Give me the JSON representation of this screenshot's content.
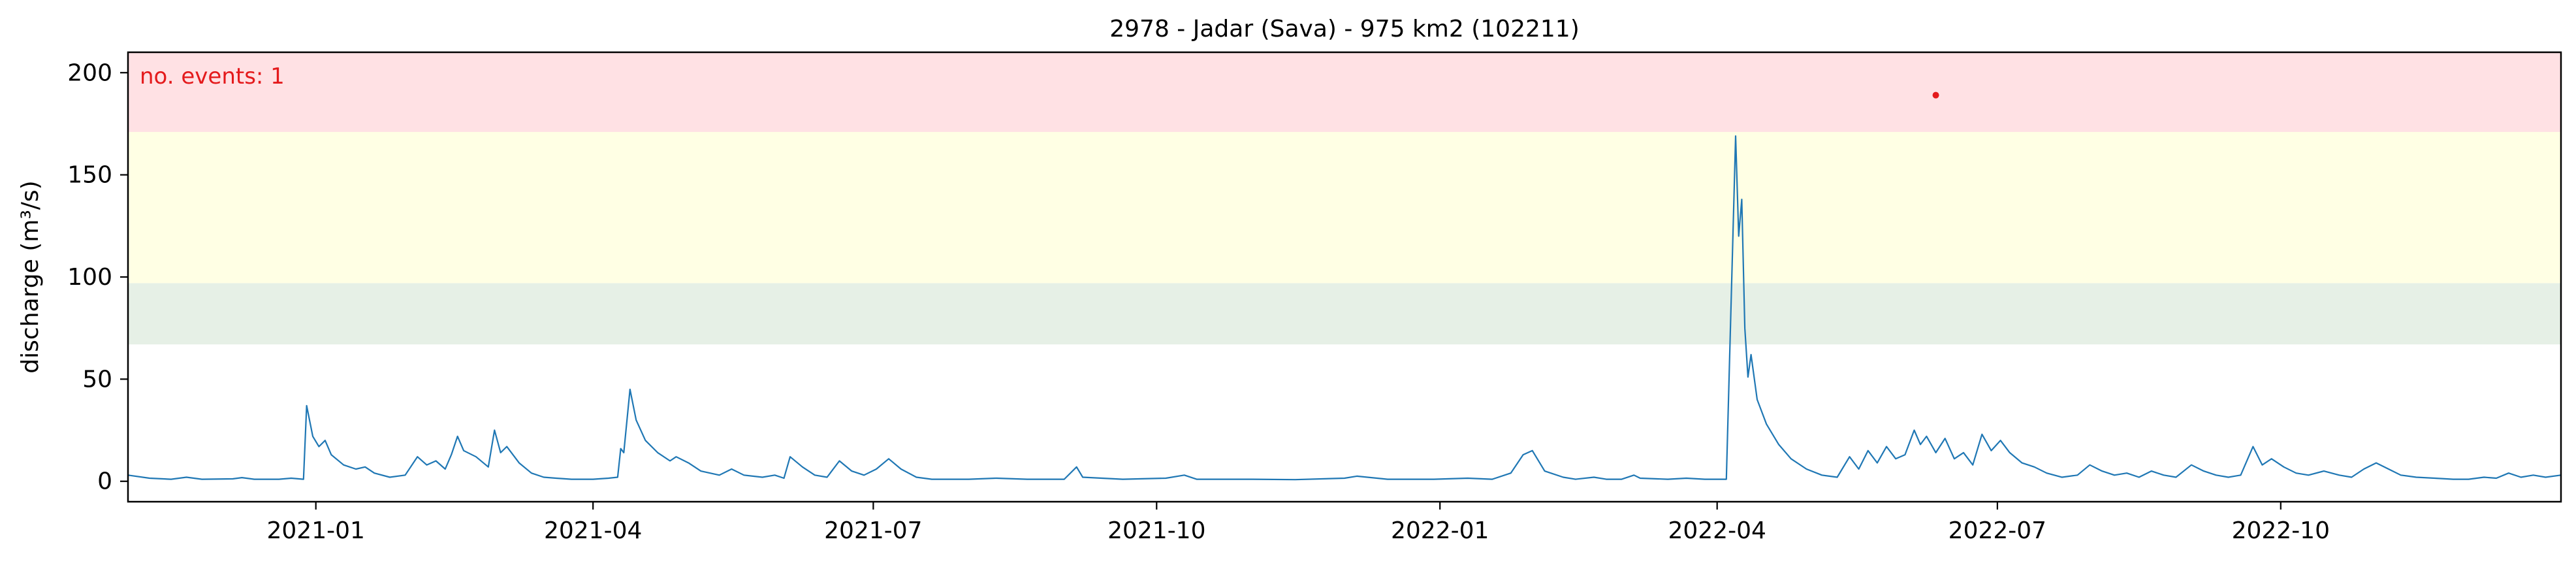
{
  "chart_data": {
    "type": "line",
    "title": "2978 - Jadar (Sava) - 975 km2 (102211)",
    "xlabel": "",
    "ylabel": "discharge (m³/s)",
    "xlim": [
      "2020-11-01",
      "2022-12-31"
    ],
    "ylim": [
      -10,
      210
    ],
    "x_ticks": [
      "2021-01",
      "2021-04",
      "2021-07",
      "2021-10",
      "2022-01",
      "2022-04",
      "2022-07",
      "2022-10"
    ],
    "y_ticks": [
      0,
      50,
      100,
      150,
      200
    ],
    "grid": false,
    "threshold_bands": [
      {
        "from": 67,
        "to": 97,
        "color": "#e6f0e6"
      },
      {
        "from": 97,
        "to": 171,
        "color": "#ffffe4"
      },
      {
        "from": 171,
        "to": 210,
        "color": "#ffe1e4"
      }
    ],
    "annotation": {
      "text": "no. events: 1",
      "color": "#e41a1c"
    },
    "events": [
      {
        "x": "2022-06-11",
        "y": 189,
        "color": "#e41a1c"
      }
    ],
    "series": [
      {
        "color": "#1f77b4",
        "points": [
          [
            "2020-11-01",
            3
          ],
          [
            "2020-11-08",
            1.5
          ],
          [
            "2020-11-15",
            1
          ],
          [
            "2020-11-20",
            2
          ],
          [
            "2020-11-25",
            1
          ],
          [
            "2020-12-05",
            1.2
          ],
          [
            "2020-12-08",
            1.8
          ],
          [
            "2020-12-12",
            1
          ],
          [
            "2020-12-20",
            1
          ],
          [
            "2020-12-24",
            1.5
          ],
          [
            "2020-12-28",
            1
          ],
          [
            "2020-12-29",
            37
          ],
          [
            "2020-12-31",
            22
          ],
          [
            "2021-01-02",
            17
          ],
          [
            "2021-01-04",
            20
          ],
          [
            "2021-01-06",
            13
          ],
          [
            "2021-01-10",
            8
          ],
          [
            "2021-01-14",
            6
          ],
          [
            "2021-01-17",
            7
          ],
          [
            "2021-01-20",
            4
          ],
          [
            "2021-01-25",
            2
          ],
          [
            "2021-01-30",
            3
          ],
          [
            "2021-02-03",
            12
          ],
          [
            "2021-02-06",
            8
          ],
          [
            "2021-02-09",
            10
          ],
          [
            "2021-02-12",
            6
          ],
          [
            "2021-02-14",
            13
          ],
          [
            "2021-02-16",
            22
          ],
          [
            "2021-02-18",
            15
          ],
          [
            "2021-02-22",
            12
          ],
          [
            "2021-02-26",
            7
          ],
          [
            "2021-02-28",
            25
          ],
          [
            "2021-03-02",
            14
          ],
          [
            "2021-03-04",
            17
          ],
          [
            "2021-03-08",
            9
          ],
          [
            "2021-03-12",
            4
          ],
          [
            "2021-03-16",
            2
          ],
          [
            "2021-03-20",
            1.5
          ],
          [
            "2021-03-25",
            1
          ],
          [
            "2021-04-01",
            1
          ],
          [
            "2021-04-06",
            1.5
          ],
          [
            "2021-04-09",
            2
          ],
          [
            "2021-04-10",
            16
          ],
          [
            "2021-04-11",
            14
          ],
          [
            "2021-04-13",
            45
          ],
          [
            "2021-04-15",
            30
          ],
          [
            "2021-04-18",
            20
          ],
          [
            "2021-04-22",
            14
          ],
          [
            "2021-04-26",
            10
          ],
          [
            "2021-04-28",
            12
          ],
          [
            "2021-05-02",
            9
          ],
          [
            "2021-05-06",
            5
          ],
          [
            "2021-05-12",
            3
          ],
          [
            "2021-05-16",
            6
          ],
          [
            "2021-05-20",
            3
          ],
          [
            "2021-05-26",
            2
          ],
          [
            "2021-05-30",
            3
          ],
          [
            "2021-06-02",
            1.5
          ],
          [
            "2021-06-04",
            12
          ],
          [
            "2021-06-08",
            7
          ],
          [
            "2021-06-12",
            3
          ],
          [
            "2021-06-16",
            2
          ],
          [
            "2021-06-20",
            10
          ],
          [
            "2021-06-24",
            5
          ],
          [
            "2021-06-28",
            3
          ],
          [
            "2021-07-02",
            6
          ],
          [
            "2021-07-06",
            11
          ],
          [
            "2021-07-10",
            6
          ],
          [
            "2021-07-15",
            2
          ],
          [
            "2021-07-20",
            1
          ],
          [
            "2021-08-01",
            1
          ],
          [
            "2021-08-10",
            1.5
          ],
          [
            "2021-08-20",
            1
          ],
          [
            "2021-09-01",
            1
          ],
          [
            "2021-09-05",
            7
          ],
          [
            "2021-09-07",
            2
          ],
          [
            "2021-09-20",
            1
          ],
          [
            "2021-10-04",
            1.5
          ],
          [
            "2021-10-10",
            3
          ],
          [
            "2021-10-14",
            1
          ],
          [
            "2021-11-01",
            1
          ],
          [
            "2021-11-15",
            0.8
          ],
          [
            "2021-12-01",
            1.5
          ],
          [
            "2021-12-05",
            2.5
          ],
          [
            "2021-12-15",
            1
          ],
          [
            "2021-12-30",
            1
          ],
          [
            "2022-01-10",
            1.5
          ],
          [
            "2022-01-18",
            1
          ],
          [
            "2022-01-24",
            4
          ],
          [
            "2022-01-28",
            13
          ],
          [
            "2022-01-31",
            15
          ],
          [
            "2022-02-04",
            5
          ],
          [
            "2022-02-10",
            2
          ],
          [
            "2022-02-14",
            1
          ],
          [
            "2022-02-20",
            2
          ],
          [
            "2022-02-24",
            1
          ],
          [
            "2022-03-01",
            1
          ],
          [
            "2022-03-05",
            3
          ],
          [
            "2022-03-07",
            1.5
          ],
          [
            "2022-03-16",
            1
          ],
          [
            "2022-03-22",
            1.5
          ],
          [
            "2022-03-28",
            1
          ],
          [
            "2022-04-04",
            1
          ],
          [
            "2022-04-07",
            169
          ],
          [
            "2022-04-08",
            120
          ],
          [
            "2022-04-09",
            138
          ],
          [
            "2022-04-10",
            75
          ],
          [
            "2022-04-11",
            51
          ],
          [
            "2022-04-12",
            62
          ],
          [
            "2022-04-14",
            40
          ],
          [
            "2022-04-17",
            28
          ],
          [
            "2022-04-21",
            18
          ],
          [
            "2022-04-25",
            11
          ],
          [
            "2022-04-30",
            6
          ],
          [
            "2022-05-05",
            3
          ],
          [
            "2022-05-10",
            2
          ],
          [
            "2022-05-14",
            12
          ],
          [
            "2022-05-17",
            6
          ],
          [
            "2022-05-20",
            15
          ],
          [
            "2022-05-23",
            9
          ],
          [
            "2022-05-26",
            17
          ],
          [
            "2022-05-29",
            11
          ],
          [
            "2022-06-01",
            13
          ],
          [
            "2022-06-04",
            25
          ],
          [
            "2022-06-06",
            18
          ],
          [
            "2022-06-08",
            22
          ],
          [
            "2022-06-11",
            14
          ],
          [
            "2022-06-14",
            21
          ],
          [
            "2022-06-17",
            11
          ],
          [
            "2022-06-20",
            14
          ],
          [
            "2022-06-23",
            8
          ],
          [
            "2022-06-26",
            23
          ],
          [
            "2022-06-29",
            15
          ],
          [
            "2022-07-02",
            20
          ],
          [
            "2022-07-05",
            14
          ],
          [
            "2022-07-09",
            9
          ],
          [
            "2022-07-13",
            7
          ],
          [
            "2022-07-17",
            4
          ],
          [
            "2022-07-22",
            2
          ],
          [
            "2022-07-27",
            3
          ],
          [
            "2022-07-31",
            8
          ],
          [
            "2022-08-04",
            5
          ],
          [
            "2022-08-08",
            3
          ],
          [
            "2022-08-12",
            4
          ],
          [
            "2022-08-16",
            2
          ],
          [
            "2022-08-20",
            5
          ],
          [
            "2022-08-24",
            3
          ],
          [
            "2022-08-28",
            2
          ],
          [
            "2022-09-02",
            8
          ],
          [
            "2022-09-06",
            5
          ],
          [
            "2022-09-10",
            3
          ],
          [
            "2022-09-14",
            2
          ],
          [
            "2022-09-18",
            3
          ],
          [
            "2022-09-22",
            17
          ],
          [
            "2022-09-25",
            8
          ],
          [
            "2022-09-28",
            11
          ],
          [
            "2022-10-02",
            7
          ],
          [
            "2022-10-06",
            4
          ],
          [
            "2022-10-10",
            3
          ],
          [
            "2022-10-15",
            5
          ],
          [
            "2022-10-20",
            3
          ],
          [
            "2022-10-24",
            2
          ],
          [
            "2022-10-28",
            6
          ],
          [
            "2022-11-01",
            9
          ],
          [
            "2022-11-05",
            6
          ],
          [
            "2022-11-09",
            3
          ],
          [
            "2022-11-14",
            2
          ],
          [
            "2022-11-20",
            1.5
          ],
          [
            "2022-11-26",
            1
          ],
          [
            "2022-12-01",
            1
          ],
          [
            "2022-12-06",
            2
          ],
          [
            "2022-12-10",
            1.5
          ],
          [
            "2022-12-14",
            4
          ],
          [
            "2022-12-18",
            2
          ],
          [
            "2022-12-22",
            3
          ],
          [
            "2022-12-26",
            2
          ],
          [
            "2022-12-31",
            3
          ]
        ]
      }
    ]
  }
}
